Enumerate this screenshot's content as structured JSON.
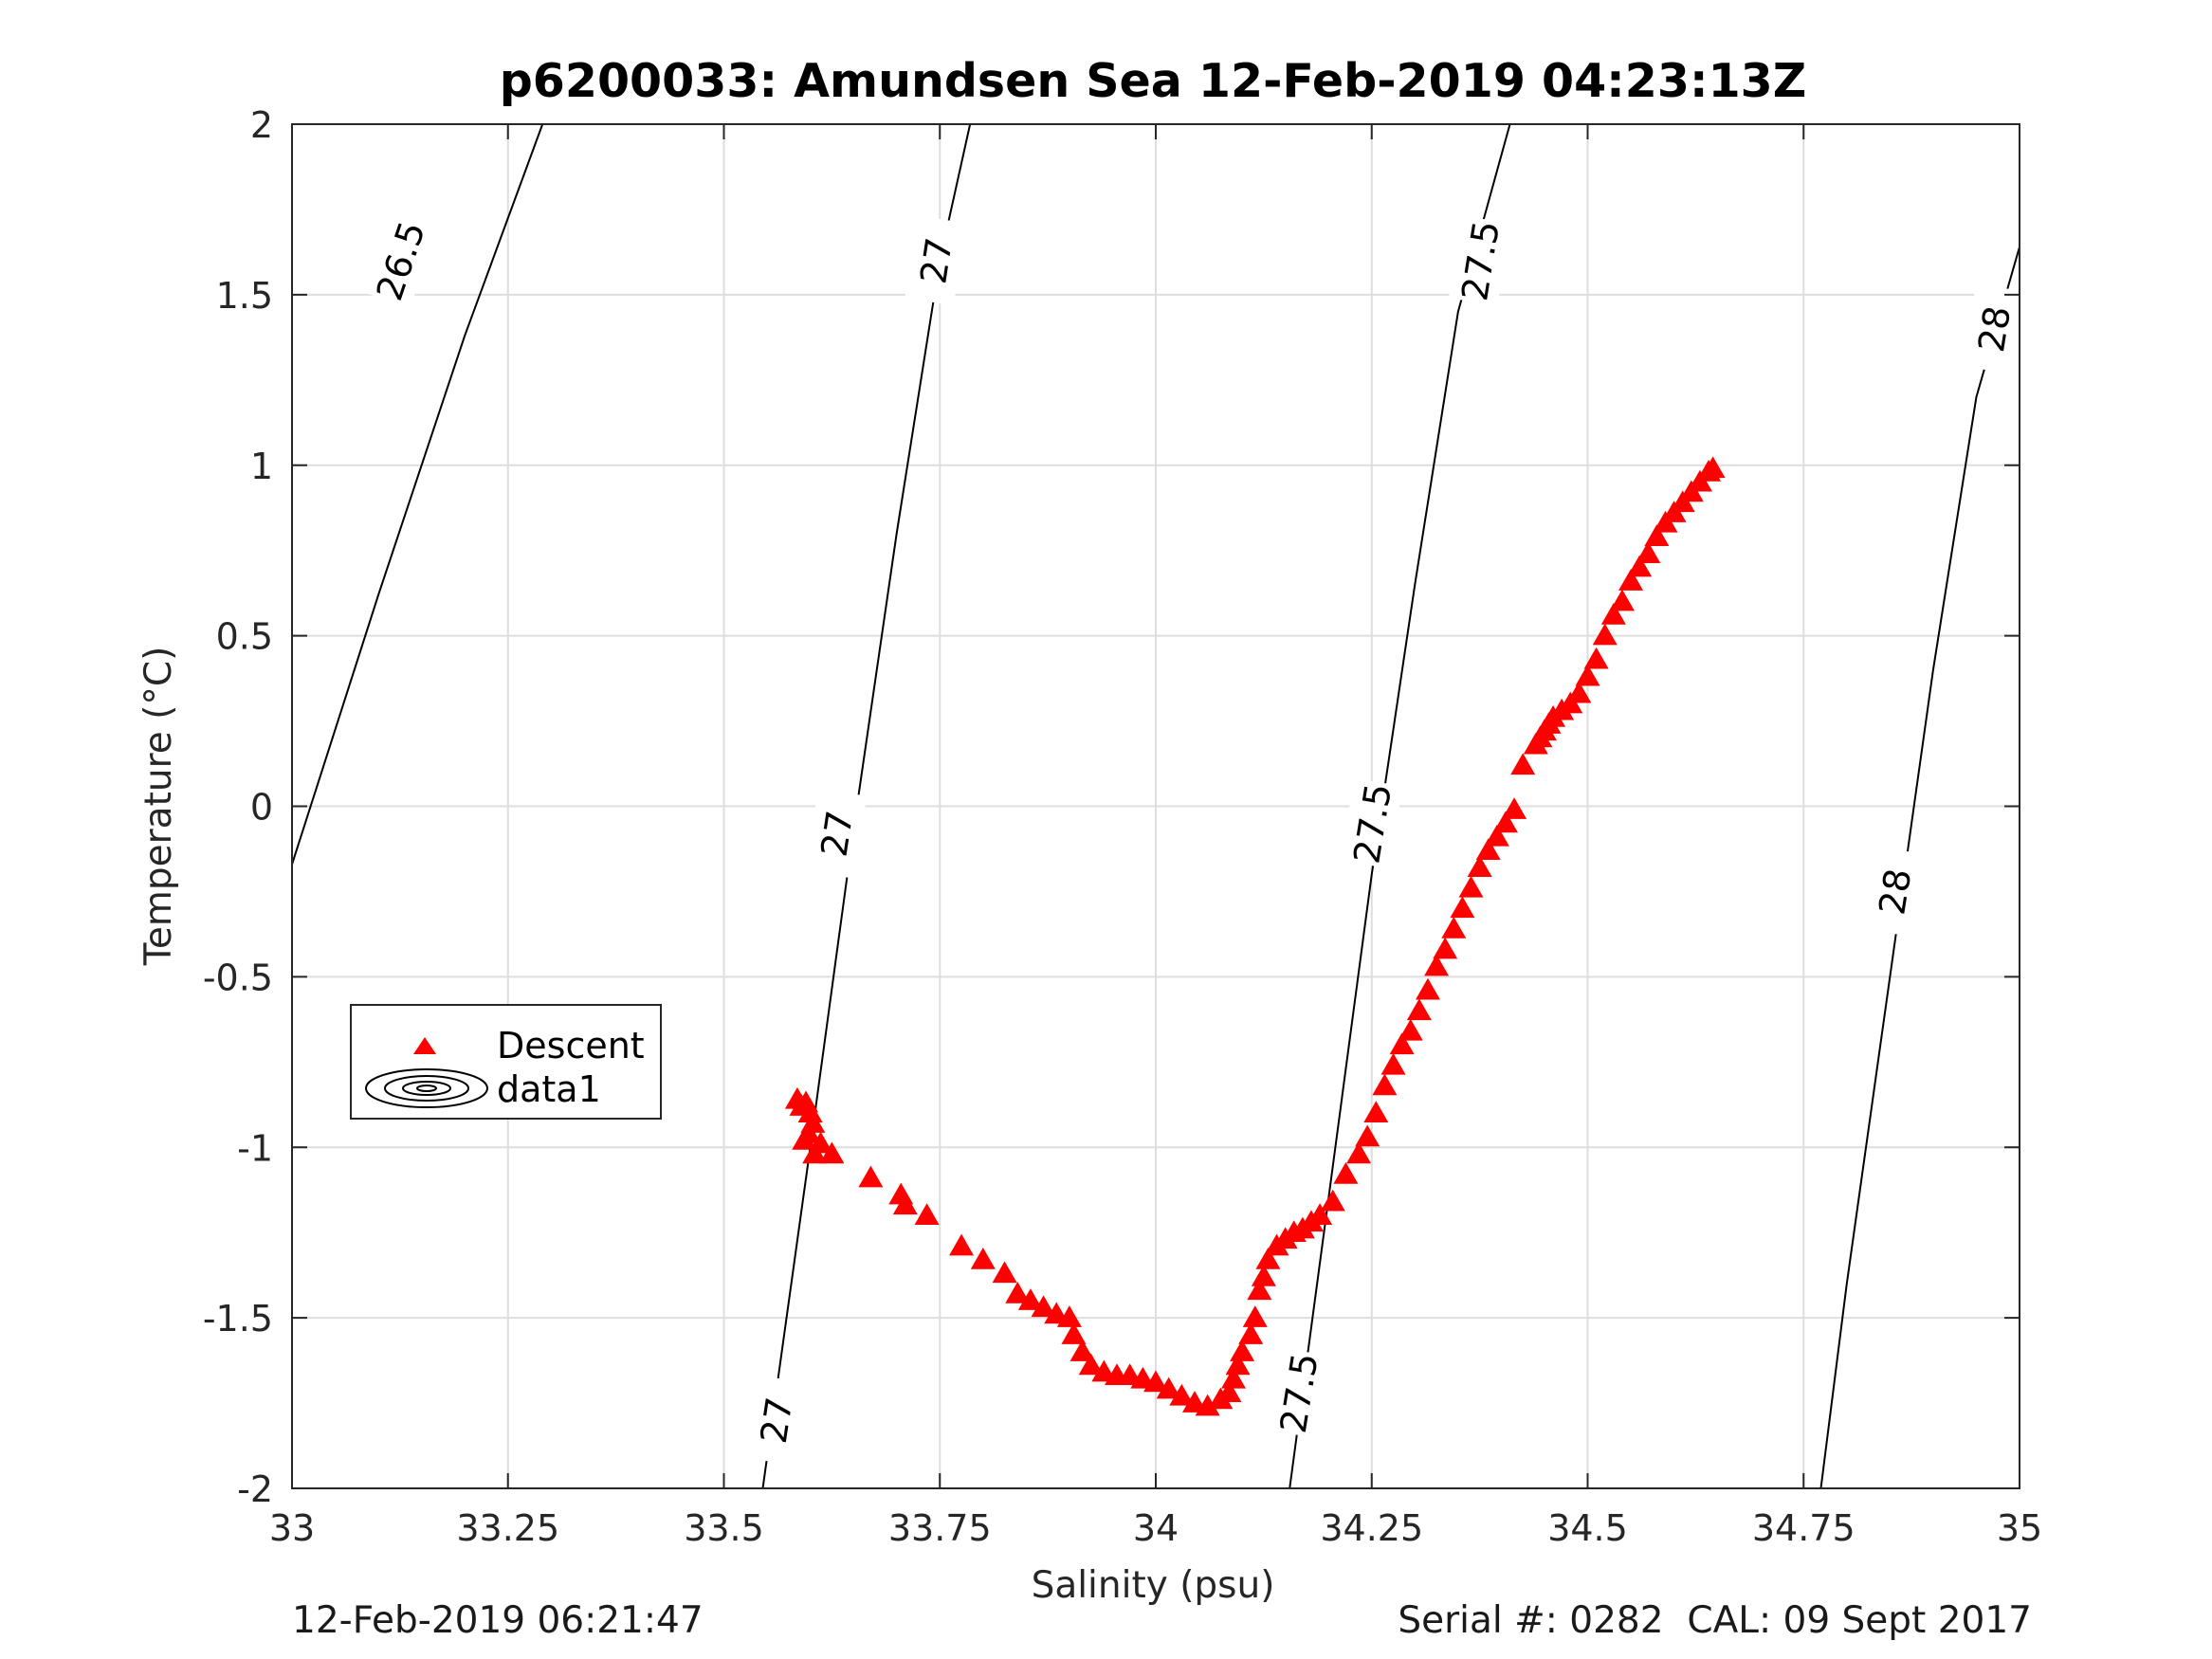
{
  "chart_data": {
    "type": "scatter",
    "title": "p6200033: Amundsen Sea 12-Feb-2019 04:23:13Z",
    "xlabel": "Salinity (psu)",
    "ylabel": "Temperature (°C)",
    "xlim": [
      33,
      35
    ],
    "ylim": [
      -2,
      2
    ],
    "xticks": [
      33,
      33.25,
      33.5,
      33.75,
      34,
      34.25,
      34.5,
      34.75,
      35
    ],
    "xtick_labels": [
      "33",
      "33.25",
      "33.5",
      "33.75",
      "34",
      "34.25",
      "34.5",
      "34.75",
      "35"
    ],
    "yticks": [
      -2,
      -1.5,
      -1,
      -0.5,
      0,
      0.5,
      1,
      1.5,
      2
    ],
    "ytick_labels": [
      "-2",
      "-1.5",
      "-1",
      "-0.5",
      "0",
      "0.5",
      "1",
      "1.5",
      "2"
    ],
    "grid": true,
    "legend": {
      "placement": "middle-left",
      "entries": [
        {
          "label": "Descent",
          "marker": "triangle",
          "color": "#ff0000"
        },
        {
          "label": "data1",
          "marker": "contour",
          "color": "#000000"
        }
      ]
    },
    "contours": [
      {
        "level": "26.5",
        "points": [
          [
            33,
            -0.17
          ],
          [
            33.1,
            0.62
          ],
          [
            33.2,
            1.38
          ],
          [
            33.29,
            2.0
          ]
        ],
        "labels": [
          {
            "x": 33.125,
            "y": 1.6
          }
        ]
      },
      {
        "level": "27",
        "points": [
          [
            33.545,
            -2.0
          ],
          [
            33.6,
            -1.0
          ],
          [
            33.65,
            -0.07
          ],
          [
            33.7,
            0.8
          ],
          [
            33.75,
            1.6
          ],
          [
            33.785,
            2.0
          ]
        ],
        "labels": [
          {
            "x": 33.56,
            "y": -1.8
          },
          {
            "x": 33.63,
            "y": -0.08
          },
          {
            "x": 33.745,
            "y": 1.6
          }
        ]
      },
      {
        "level": "27.5",
        "points": [
          [
            34.155,
            -2.0
          ],
          [
            34.2,
            -1.15
          ],
          [
            34.25,
            -0.2
          ],
          [
            34.3,
            0.65
          ],
          [
            34.35,
            1.45
          ],
          [
            34.41,
            2.0
          ]
        ],
        "labels": [
          {
            "x": 34.165,
            "y": -1.72
          },
          {
            "x": 34.25,
            "y": -0.05
          },
          {
            "x": 34.375,
            "y": 1.6
          }
        ]
      },
      {
        "level": "28",
        "points": [
          [
            34.77,
            -2.0
          ],
          [
            34.8,
            -1.4
          ],
          [
            34.85,
            -0.5
          ],
          [
            34.9,
            0.4
          ],
          [
            34.95,
            1.2
          ],
          [
            35.0,
            1.64
          ]
        ],
        "labels": [
          {
            "x": 34.855,
            "y": -0.25
          },
          {
            "x": 34.97,
            "y": 1.4
          }
        ]
      }
    ],
    "series": [
      {
        "name": "Descent",
        "color": "#ff0000",
        "marker": "triangle",
        "x": [
          33.585,
          33.59,
          33.595,
          33.6,
          33.603,
          33.598,
          33.593,
          33.605,
          33.612,
          33.625,
          33.67,
          33.705,
          33.71,
          33.735,
          33.775,
          33.8,
          33.825,
          33.84,
          33.855,
          33.87,
          33.885,
          33.9,
          33.905,
          33.915,
          33.925,
          33.94,
          33.955,
          33.97,
          33.985,
          34.0,
          34.015,
          34.03,
          34.045,
          34.06,
          34.075,
          34.085,
          34.09,
          34.095,
          34.1,
          34.11,
          34.115,
          34.12,
          34.125,
          34.13,
          34.14,
          34.15,
          34.16,
          34.17,
          34.18,
          34.19,
          34.205,
          34.22,
          34.235,
          34.245,
          34.255,
          34.265,
          34.275,
          34.285,
          34.295,
          34.305,
          34.315,
          34.325,
          34.335,
          34.345,
          34.355,
          34.365,
          34.375,
          34.385,
          34.395,
          34.405,
          34.415,
          34.425,
          34.44,
          34.445,
          34.45,
          34.455,
          34.46,
          34.47,
          34.48,
          34.49,
          34.5,
          34.51,
          34.52,
          34.53,
          34.54,
          34.55,
          34.56,
          34.57,
          34.58,
          34.59,
          34.6,
          34.61,
          34.62,
          34.63,
          34.64,
          34.645
        ],
        "y": [
          -0.86,
          -0.88,
          -0.87,
          -0.9,
          -0.93,
          -0.96,
          -0.98,
          -1.02,
          -0.99,
          -1.02,
          -1.09,
          -1.14,
          -1.17,
          -1.2,
          -1.29,
          -1.33,
          -1.37,
          -1.43,
          -1.45,
          -1.47,
          -1.49,
          -1.5,
          -1.55,
          -1.6,
          -1.64,
          -1.66,
          -1.67,
          -1.67,
          -1.68,
          -1.69,
          -1.71,
          -1.73,
          -1.75,
          -1.76,
          -1.74,
          -1.72,
          -1.68,
          -1.64,
          -1.6,
          -1.55,
          -1.5,
          -1.42,
          -1.38,
          -1.33,
          -1.29,
          -1.27,
          -1.25,
          -1.24,
          -1.22,
          -1.2,
          -1.16,
          -1.08,
          -1.02,
          -0.97,
          -0.9,
          -0.82,
          -0.76,
          -0.7,
          -0.66,
          -0.6,
          -0.54,
          -0.47,
          -0.42,
          -0.36,
          -0.3,
          -0.24,
          -0.18,
          -0.13,
          -0.09,
          -0.05,
          -0.01,
          0.12,
          0.18,
          0.2,
          0.22,
          0.24,
          0.26,
          0.28,
          0.3,
          0.33,
          0.38,
          0.43,
          0.5,
          0.56,
          0.6,
          0.66,
          0.7,
          0.74,
          0.79,
          0.83,
          0.86,
          0.89,
          0.92,
          0.95,
          0.98,
          0.99
        ]
      }
    ]
  },
  "footer": {
    "left": "12-Feb-2019 06:21:47",
    "right": "Serial #: 0282  CAL: 09 Sept 2017"
  }
}
